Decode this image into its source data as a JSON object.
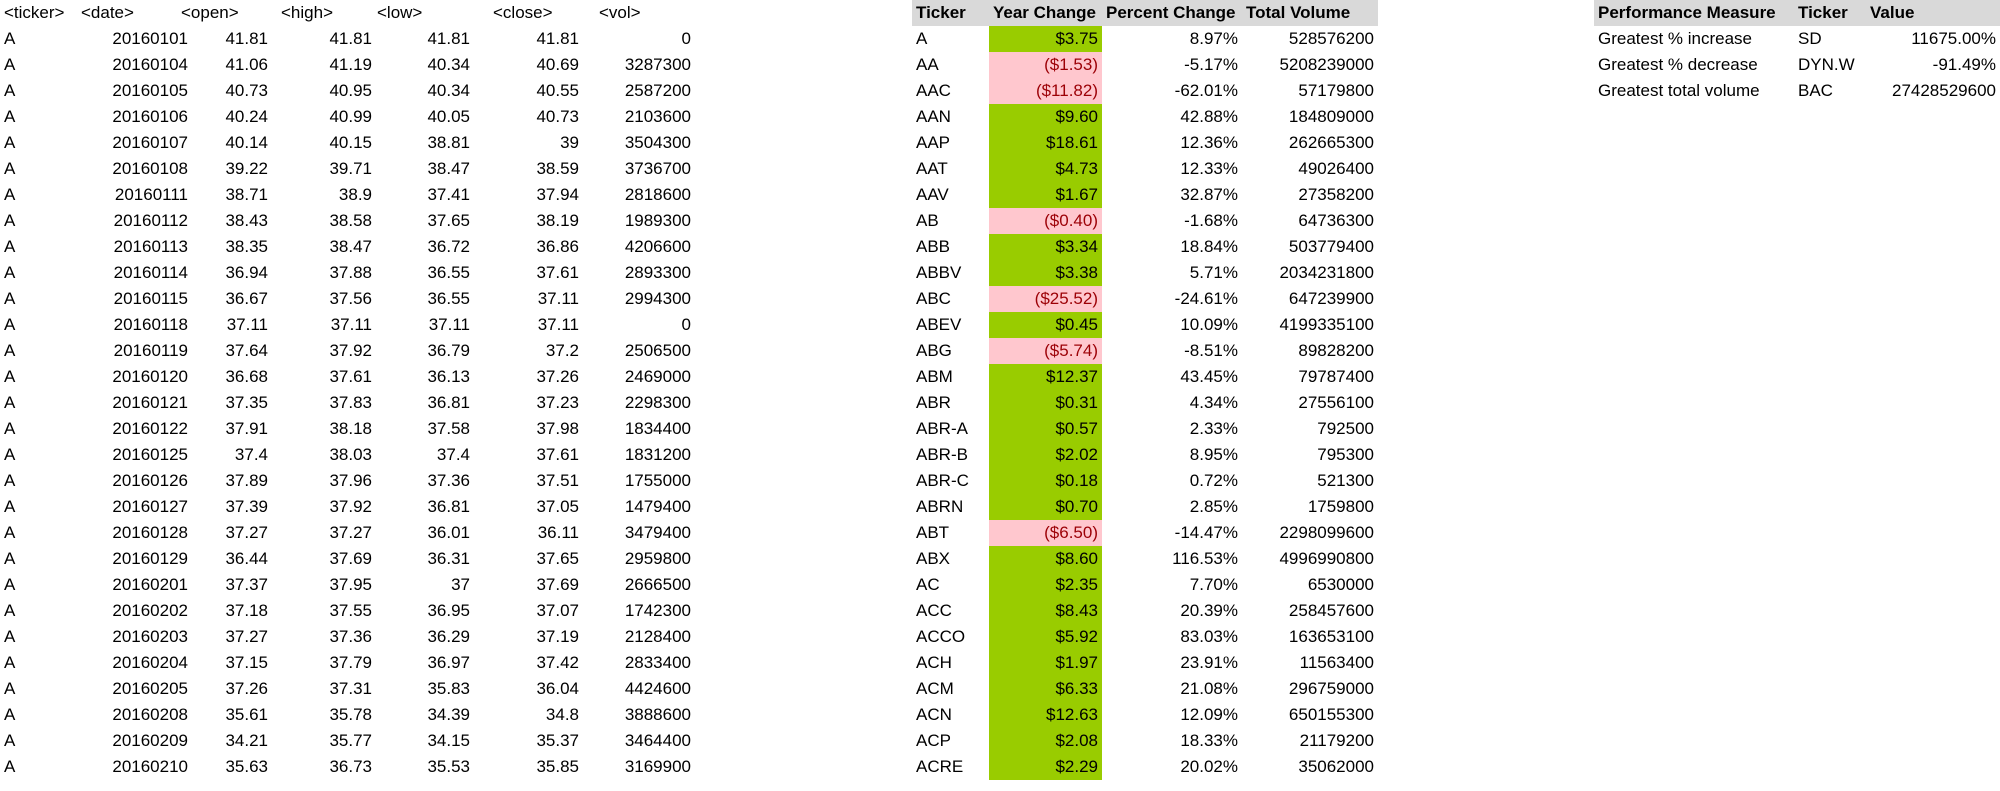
{
  "raw": {
    "headers": [
      "<ticker>",
      "<date>",
      "<open>",
      "<high>",
      "<low>",
      "<close>",
      "<vol>"
    ],
    "rows": [
      [
        "A",
        "20160101",
        "41.81",
        "41.81",
        "41.81",
        "41.81",
        "0"
      ],
      [
        "A",
        "20160104",
        "41.06",
        "41.19",
        "40.34",
        "40.69",
        "3287300"
      ],
      [
        "A",
        "20160105",
        "40.73",
        "40.95",
        "40.34",
        "40.55",
        "2587200"
      ],
      [
        "A",
        "20160106",
        "40.24",
        "40.99",
        "40.05",
        "40.73",
        "2103600"
      ],
      [
        "A",
        "20160107",
        "40.14",
        "40.15",
        "38.81",
        "39",
        "3504300"
      ],
      [
        "A",
        "20160108",
        "39.22",
        "39.71",
        "38.47",
        "38.59",
        "3736700"
      ],
      [
        "A",
        "20160111",
        "38.71",
        "38.9",
        "37.41",
        "37.94",
        "2818600"
      ],
      [
        "A",
        "20160112",
        "38.43",
        "38.58",
        "37.65",
        "38.19",
        "1989300"
      ],
      [
        "A",
        "20160113",
        "38.35",
        "38.47",
        "36.72",
        "36.86",
        "4206600"
      ],
      [
        "A",
        "20160114",
        "36.94",
        "37.88",
        "36.55",
        "37.61",
        "2893300"
      ],
      [
        "A",
        "20160115",
        "36.67",
        "37.56",
        "36.55",
        "37.11",
        "2994300"
      ],
      [
        "A",
        "20160118",
        "37.11",
        "37.11",
        "37.11",
        "37.11",
        "0"
      ],
      [
        "A",
        "20160119",
        "37.64",
        "37.92",
        "36.79",
        "37.2",
        "2506500"
      ],
      [
        "A",
        "20160120",
        "36.68",
        "37.61",
        "36.13",
        "37.26",
        "2469000"
      ],
      [
        "A",
        "20160121",
        "37.35",
        "37.83",
        "36.81",
        "37.23",
        "2298300"
      ],
      [
        "A",
        "20160122",
        "37.91",
        "38.18",
        "37.58",
        "37.98",
        "1834400"
      ],
      [
        "A",
        "20160125",
        "37.4",
        "38.03",
        "37.4",
        "37.61",
        "1831200"
      ],
      [
        "A",
        "20160126",
        "37.89",
        "37.96",
        "37.36",
        "37.51",
        "1755000"
      ],
      [
        "A",
        "20160127",
        "37.39",
        "37.92",
        "36.81",
        "37.05",
        "1479400"
      ],
      [
        "A",
        "20160128",
        "37.27",
        "37.27",
        "36.01",
        "36.11",
        "3479400"
      ],
      [
        "A",
        "20160129",
        "36.44",
        "37.69",
        "36.31",
        "37.65",
        "2959800"
      ],
      [
        "A",
        "20160201",
        "37.37",
        "37.95",
        "37",
        "37.69",
        "2666500"
      ],
      [
        "A",
        "20160202",
        "37.18",
        "37.55",
        "36.95",
        "37.07",
        "1742300"
      ],
      [
        "A",
        "20160203",
        "37.27",
        "37.36",
        "36.29",
        "37.19",
        "2128400"
      ],
      [
        "A",
        "20160204",
        "37.15",
        "37.79",
        "36.97",
        "37.42",
        "2833400"
      ],
      [
        "A",
        "20160205",
        "37.26",
        "37.31",
        "35.83",
        "36.04",
        "4424600"
      ],
      [
        "A",
        "20160208",
        "35.61",
        "35.78",
        "34.39",
        "34.8",
        "3888600"
      ],
      [
        "A",
        "20160209",
        "34.21",
        "35.77",
        "34.15",
        "35.37",
        "3464400"
      ],
      [
        "A",
        "20160210",
        "35.63",
        "36.73",
        "35.53",
        "35.85",
        "3169900"
      ]
    ]
  },
  "summary": {
    "headers": [
      "Ticker",
      "Year Change",
      "Percent Change",
      "Total Volume"
    ],
    "rows": [
      {
        "ticker": "A",
        "change": "$3.75",
        "pct": "8.97%",
        "vol": "528576200",
        "status": "positive"
      },
      {
        "ticker": "AA",
        "change": "($1.53)",
        "pct": "-5.17%",
        "vol": "5208239000",
        "status": "negative"
      },
      {
        "ticker": "AAC",
        "change": "($11.82)",
        "pct": "-62.01%",
        "vol": "57179800",
        "status": "negative"
      },
      {
        "ticker": "AAN",
        "change": "$9.60",
        "pct": "42.88%",
        "vol": "184809000",
        "status": "positive"
      },
      {
        "ticker": "AAP",
        "change": "$18.61",
        "pct": "12.36%",
        "vol": "262665300",
        "status": "positive"
      },
      {
        "ticker": "AAT",
        "change": "$4.73",
        "pct": "12.33%",
        "vol": "49026400",
        "status": "positive"
      },
      {
        "ticker": "AAV",
        "change": "$1.67",
        "pct": "32.87%",
        "vol": "27358200",
        "status": "positive"
      },
      {
        "ticker": "AB",
        "change": "($0.40)",
        "pct": "-1.68%",
        "vol": "64736300",
        "status": "negative"
      },
      {
        "ticker": "ABB",
        "change": "$3.34",
        "pct": "18.84%",
        "vol": "503779400",
        "status": "positive"
      },
      {
        "ticker": "ABBV",
        "change": "$3.38",
        "pct": "5.71%",
        "vol": "2034231800",
        "status": "positive"
      },
      {
        "ticker": "ABC",
        "change": "($25.52)",
        "pct": "-24.61%",
        "vol": "647239900",
        "status": "negative"
      },
      {
        "ticker": "ABEV",
        "change": "$0.45",
        "pct": "10.09%",
        "vol": "4199335100",
        "status": "positive"
      },
      {
        "ticker": "ABG",
        "change": "($5.74)",
        "pct": "-8.51%",
        "vol": "89828200",
        "status": "negative"
      },
      {
        "ticker": "ABM",
        "change": "$12.37",
        "pct": "43.45%",
        "vol": "79787400",
        "status": "positive"
      },
      {
        "ticker": "ABR",
        "change": "$0.31",
        "pct": "4.34%",
        "vol": "27556100",
        "status": "positive"
      },
      {
        "ticker": "ABR-A",
        "change": "$0.57",
        "pct": "2.33%",
        "vol": "792500",
        "status": "positive"
      },
      {
        "ticker": "ABR-B",
        "change": "$2.02",
        "pct": "8.95%",
        "vol": "795300",
        "status": "positive"
      },
      {
        "ticker": "ABR-C",
        "change": "$0.18",
        "pct": "0.72%",
        "vol": "521300",
        "status": "positive"
      },
      {
        "ticker": "ABRN",
        "change": "$0.70",
        "pct": "2.85%",
        "vol": "1759800",
        "status": "positive"
      },
      {
        "ticker": "ABT",
        "change": "($6.50)",
        "pct": "-14.47%",
        "vol": "2298099600",
        "status": "negative"
      },
      {
        "ticker": "ABX",
        "change": "$8.60",
        "pct": "116.53%",
        "vol": "4996990800",
        "status": "positive"
      },
      {
        "ticker": "AC",
        "change": "$2.35",
        "pct": "7.70%",
        "vol": "6530000",
        "status": "positive"
      },
      {
        "ticker": "ACC",
        "change": "$8.43",
        "pct": "20.39%",
        "vol": "258457600",
        "status": "positive"
      },
      {
        "ticker": "ACCO",
        "change": "$5.92",
        "pct": "83.03%",
        "vol": "163653100",
        "status": "positive"
      },
      {
        "ticker": "ACH",
        "change": "$1.97",
        "pct": "23.91%",
        "vol": "11563400",
        "status": "positive"
      },
      {
        "ticker": "ACM",
        "change": "$6.33",
        "pct": "21.08%",
        "vol": "296759000",
        "status": "positive"
      },
      {
        "ticker": "ACN",
        "change": "$12.63",
        "pct": "12.09%",
        "vol": "650155300",
        "status": "positive"
      },
      {
        "ticker": "ACP",
        "change": "$2.08",
        "pct": "18.33%",
        "vol": "21179200",
        "status": "positive"
      },
      {
        "ticker": "ACRE",
        "change": "$2.29",
        "pct": "20.02%",
        "vol": "35062000",
        "status": "positive"
      }
    ]
  },
  "performance": {
    "headers": [
      "Performance Measure",
      "Ticker",
      "Value"
    ],
    "rows": [
      [
        "Greatest % increase",
        "SD",
        "11675.00%"
      ],
      [
        "Greatest % decrease",
        "DYN.W",
        "-91.49%"
      ],
      [
        "Greatest total volume",
        "BAC",
        "27428529600"
      ]
    ]
  },
  "colors": {
    "header_fill": "#d9d9d9",
    "positive_fill": "#99cc00",
    "negative_fill": "#ffc7ce",
    "negative_text": "#9c0006"
  }
}
